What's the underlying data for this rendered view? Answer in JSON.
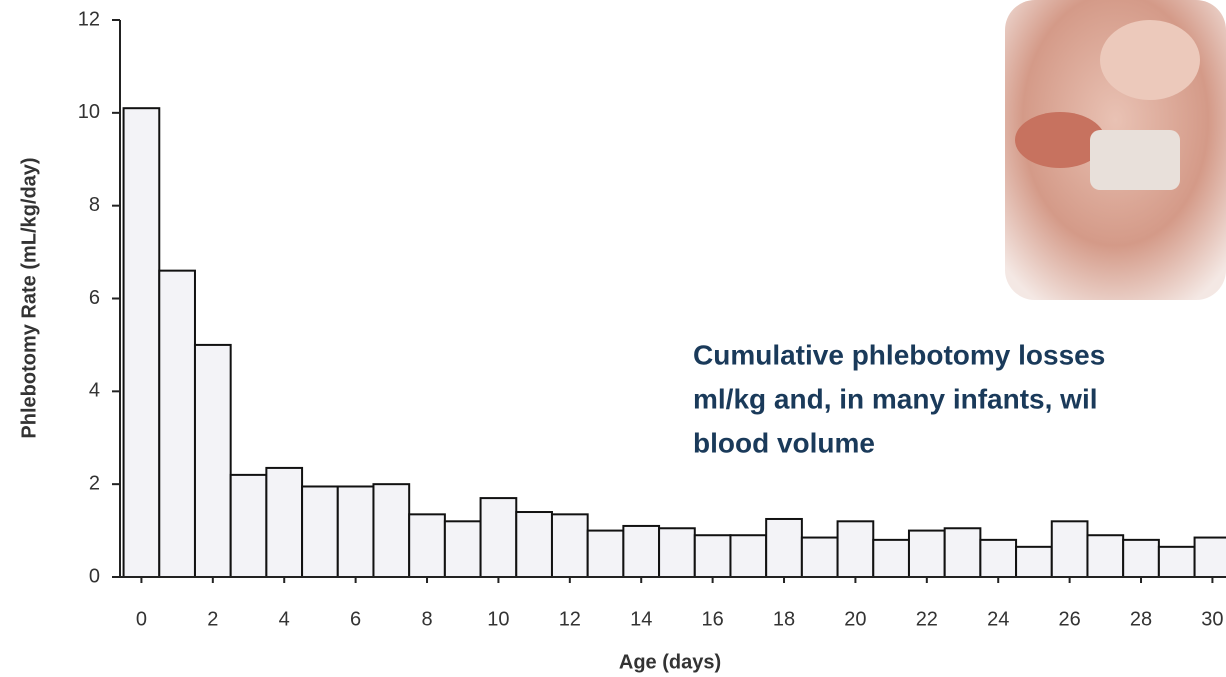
{
  "chart_data": {
    "type": "bar",
    "x_label": "Age (days)",
    "y_label": "Phlebotomy Rate (mL/kg/day)",
    "x": [
      0,
      1,
      2,
      3,
      4,
      5,
      6,
      7,
      8,
      9,
      10,
      11,
      12,
      13,
      14,
      15,
      16,
      17,
      18,
      19,
      20,
      21,
      22,
      23,
      24,
      25,
      26,
      27,
      28,
      29,
      30
    ],
    "values": [
      10.1,
      6.6,
      5.0,
      2.2,
      2.35,
      1.95,
      1.95,
      2.0,
      1.35,
      1.2,
      1.7,
      1.4,
      1.35,
      1.0,
      1.1,
      1.05,
      0.9,
      0.9,
      1.25,
      0.85,
      1.2,
      0.8,
      1.0,
      1.05,
      0.8,
      0.65,
      1.2,
      0.9,
      0.8,
      0.65,
      0.85
    ],
    "color": "#f3f3f7",
    "xlim": [
      -0.6,
      30.5
    ],
    "xticks": [
      0,
      2,
      4,
      6,
      8,
      10,
      12,
      14,
      16,
      18,
      20,
      22,
      24,
      26,
      28,
      30
    ],
    "ylim": [
      0,
      12
    ],
    "yticks": [
      0,
      2,
      4,
      6,
      8,
      10,
      12
    ],
    "annotation": [
      "Cumulative phlebotomy losses",
      "ml/kg and, in many infants, wil",
      "blood volume"
    ]
  }
}
